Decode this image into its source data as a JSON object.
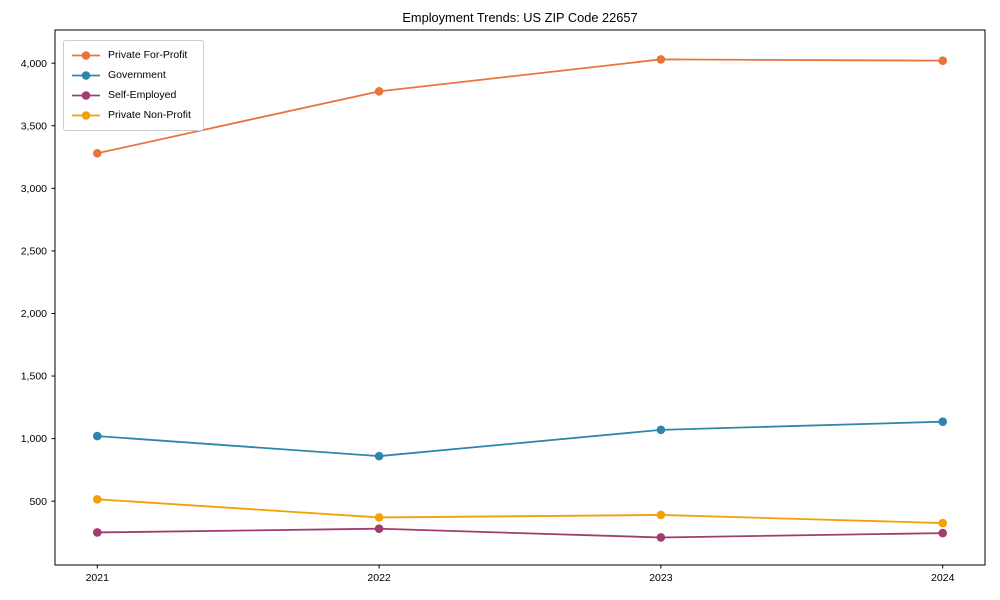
{
  "chart_data": {
    "type": "line",
    "title": "Employment Trends: US ZIP Code 22657",
    "xlabel": "",
    "ylabel": "",
    "categories": [
      "2021",
      "2022",
      "2023",
      "2024"
    ],
    "series": [
      {
        "name": "Private For-Profit",
        "color": "#E8743B",
        "values": [
          3280,
          3775,
          4030,
          4020
        ]
      },
      {
        "name": "Government",
        "color": "#2E86AB",
        "values": [
          1020,
          860,
          1070,
          1135
        ]
      },
      {
        "name": "Self-Employed",
        "color": "#A23B72",
        "values": [
          250,
          280,
          210,
          245
        ]
      },
      {
        "name": "Private Non-Profit",
        "color": "#F4A004",
        "values": [
          515,
          370,
          390,
          325
        ]
      }
    ],
    "y_ticks": [
      "500",
      "1,000",
      "1,500",
      "2,000",
      "2,500",
      "3,000",
      "3,500",
      "4,000"
    ],
    "y_tick_values": [
      500,
      1000,
      1500,
      2000,
      2500,
      3000,
      3500,
      4000
    ],
    "ylim": [
      -10,
      4265
    ],
    "xlim_index": [
      -0.15,
      3.15
    ],
    "grid": false,
    "marker": "o",
    "legend_position": "upper left",
    "axis_color": "#000000",
    "background_color": "#ffffff"
  }
}
